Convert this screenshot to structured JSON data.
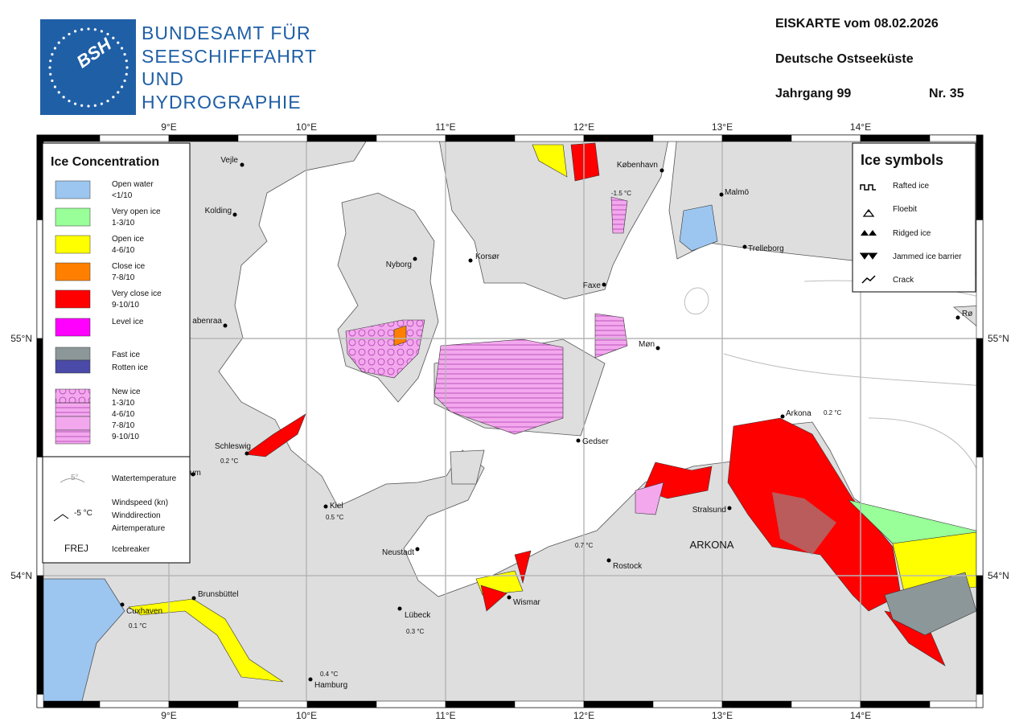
{
  "header": {
    "logo": "BSH",
    "agency": [
      "BUNDESAMT FÜR",
      "SEESCHIFFFAHRT",
      "UND",
      "HYDROGRAPHIE"
    ],
    "title": "EISKARTE vom 08.02.2026",
    "region": "Deutsche Ostseeküste",
    "volume": "Jahrgang 99",
    "number": "Nr. 35"
  },
  "map": {
    "longitudes": [
      "9°E",
      "10°E",
      "11°E",
      "12°E",
      "13°E",
      "14°E"
    ],
    "latitudes": [
      "55°N",
      "54°N"
    ],
    "places": [
      "Vejle",
      "Kolding",
      "abenraa",
      "Nyborg",
      "Korsør",
      "København",
      "Malmö",
      "Trelleborg",
      "Faxe",
      "Møn",
      "Gedser",
      "Arkona",
      "Stralsund",
      "Rostock",
      "Wismar",
      "Lübeck",
      "Neustadt",
      "Kiel",
      "Schleswig",
      "um",
      "Cuxhaven",
      "Brunsbüttel",
      "Hamburg",
      "Rø"
    ],
    "temperatures": [
      "-1.5 °C",
      "0.2 °C",
      "0.2 °C",
      "0.5 °C",
      "0.7 °C",
      "0.1 °C",
      "0.3 °C",
      "0.4 °C"
    ],
    "sea_area": "ARKONA"
  },
  "legend": {
    "title": "Ice Concentration",
    "items": [
      [
        "Open water",
        "<1/10"
      ],
      [
        "Very open ice",
        "1-3/10"
      ],
      [
        "Open ice",
        "4-6/10"
      ],
      [
        "Close ice",
        "7-8/10"
      ],
      [
        "Very close ice",
        "9-10/10"
      ],
      [
        "Level ice"
      ],
      [
        "Fast ice"
      ],
      [
        "Rotten ice"
      ],
      [
        "New ice",
        "1-3/10",
        "4-6/10",
        "7-8/10",
        "9-10/10"
      ]
    ],
    "water_temperature": {
      "sample": "5°",
      "label": "Watertemperature"
    },
    "wind": {
      "sample": "-5 °C",
      "label": [
        "Windspeed (kn)",
        "Winddirection",
        "Airtemperature"
      ]
    },
    "icebreaker": {
      "sample": "FREJ",
      "label": "Icebreaker"
    }
  },
  "symbols": {
    "title": "Ice symbols",
    "items": [
      "Rafted ice",
      "Floebit",
      "Ridged ice",
      "Jammed ice barrier",
      "Crack"
    ]
  }
}
